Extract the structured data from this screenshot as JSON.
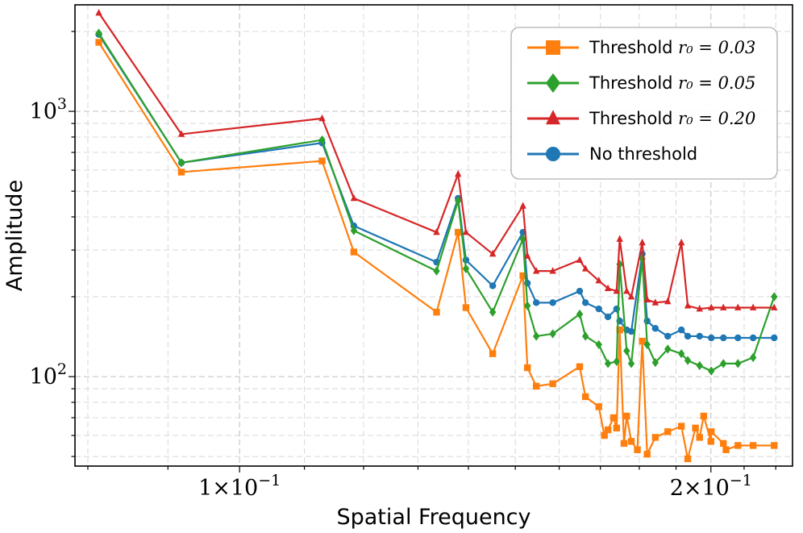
{
  "chart_data": {
    "type": "line",
    "xscale": "log",
    "yscale": "log",
    "xlabel": "Spatial Frequency",
    "ylabel": "Amplitude",
    "xlim": [
      0.0785,
      0.2255
    ],
    "ylim": [
      46,
      2520
    ],
    "xticks": [
      {
        "value": 0.1,
        "base": "1×10",
        "exp": "−1"
      },
      {
        "value": 0.2,
        "base": "2×10",
        "exp": "−1"
      }
    ],
    "yticks": [
      {
        "value": 100,
        "base": "10",
        "exp": "2"
      },
      {
        "value": 1000,
        "base": "10",
        "exp": "3"
      }
    ],
    "grid": true,
    "legend_position": "top-right",
    "series": [
      {
        "name": "No threshold",
        "label_prefix": "No threshold",
        "label_math": "",
        "color": "#1f77b4",
        "marker": "circle",
        "x": [
          0.0813,
          0.0918,
          0.1129,
          0.1183,
          0.1336,
          0.1379,
          0.1395,
          0.1451,
          0.1517,
          0.1527,
          0.1547,
          0.1585,
          0.1649,
          0.1663,
          0.1696,
          0.1719,
          0.1741,
          0.1749,
          0.1767,
          0.1779,
          0.1808,
          0.1821,
          0.1843,
          0.1877,
          0.1915,
          0.1933,
          0.1967,
          0.2001,
          0.2037,
          0.2081,
          0.2128,
          0.2195
        ],
        "values": [
          1950,
          640,
          760,
          370,
          270,
          470,
          275,
          220,
          350,
          225,
          190,
          190,
          210,
          190,
          180,
          168,
          180,
          162,
          150,
          148,
          290,
          162,
          152,
          142,
          150,
          142,
          142,
          140,
          140,
          140,
          140,
          140
        ]
      },
      {
        "name": "Threshold r0 = 0.03",
        "label_prefix": "Threshold ",
        "label_math": "r₀ = 0.03",
        "color": "#ff7f0e",
        "marker": "square",
        "x": [
          0.0813,
          0.0918,
          0.1129,
          0.1183,
          0.1336,
          0.1379,
          0.1395,
          0.1451,
          0.1517,
          0.1527,
          0.1547,
          0.1585,
          0.1649,
          0.1663,
          0.1696,
          0.1719,
          0.1741,
          0.1749,
          0.1767,
          0.1779,
          0.1808,
          0.1821,
          0.1843,
          0.1877,
          0.1915,
          0.1933,
          0.1967,
          0.2001,
          0.2037,
          0.2081,
          0.2128,
          0.2195,
          0.1955,
          0.1979,
          0.2,
          0.2045,
          0.1733,
          0.171,
          0.176,
          0.1795
        ],
        "values": [
          1820,
          590,
          650,
          295,
          175,
          350,
          182,
          122,
          240,
          108,
          92,
          94,
          109,
          84,
          77,
          63,
          64,
          150,
          71,
          57,
          136,
          51,
          59,
          62,
          65,
          49,
          59,
          62,
          56,
          55,
          55,
          55,
          64,
          71,
          57,
          53,
          70,
          60,
          56,
          53
        ]
      },
      {
        "name": "Threshold r0 = 0.05",
        "label_prefix": "Threshold ",
        "label_math": "r₀ = 0.05",
        "color": "#2ca02c",
        "marker": "diamond",
        "x": [
          0.0813,
          0.0918,
          0.1129,
          0.1183,
          0.1336,
          0.1379,
          0.1395,
          0.1451,
          0.1517,
          0.1527,
          0.1547,
          0.1585,
          0.1649,
          0.1663,
          0.1696,
          0.1719,
          0.1741,
          0.1749,
          0.1767,
          0.1779,
          0.1808,
          0.1821,
          0.1843,
          0.1877,
          0.1915,
          0.1933,
          0.1967,
          0.2001,
          0.2037,
          0.2081,
          0.2128,
          0.2195
        ],
        "values": [
          1970,
          640,
          780,
          355,
          250,
          460,
          255,
          175,
          330,
          185,
          142,
          145,
          172,
          142,
          132,
          112,
          114,
          265,
          125,
          112,
          278,
          132,
          113,
          127,
          122,
          115,
          110,
          105,
          112,
          112,
          118,
          200
        ]
      },
      {
        "name": "Threshold r0 = 0.20",
        "label_prefix": "Threshold ",
        "label_math": "r₀ = 0.20",
        "color": "#d62728",
        "marker": "triangle",
        "x": [
          0.0813,
          0.0918,
          0.1129,
          0.1183,
          0.1336,
          0.1379,
          0.1395,
          0.1451,
          0.1517,
          0.1527,
          0.1547,
          0.1585,
          0.1649,
          0.1663,
          0.1696,
          0.1719,
          0.1741,
          0.1749,
          0.1767,
          0.1779,
          0.1808,
          0.1821,
          0.1843,
          0.1877,
          0.1915,
          0.1933,
          0.1967,
          0.2001,
          0.2037,
          0.2081,
          0.2128,
          0.2195
        ],
        "values": [
          2350,
          820,
          940,
          470,
          350,
          580,
          350,
          290,
          440,
          285,
          250,
          250,
          275,
          255,
          230,
          215,
          210,
          330,
          210,
          200,
          320,
          195,
          190,
          192,
          320,
          185,
          180,
          182,
          182,
          182,
          182,
          182
        ]
      }
    ]
  }
}
